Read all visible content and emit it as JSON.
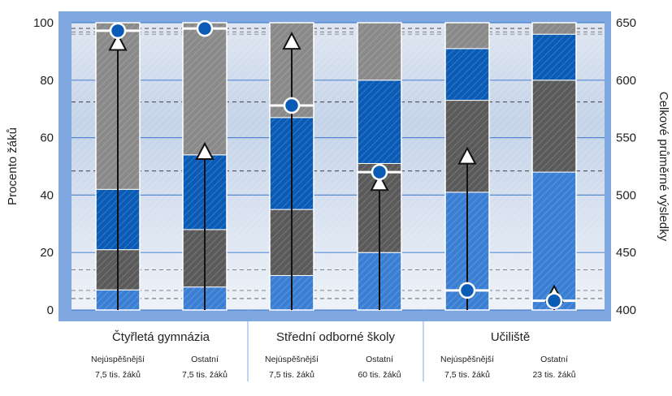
{
  "chart_data": {
    "type": "bar",
    "stacked": true,
    "ylabel": "Procento žáků",
    "y2label": "Celkové průměrné výsledky",
    "ylim": [
      0,
      100
    ],
    "y2lim": [
      400,
      650
    ],
    "yticks": [
      "0",
      "20",
      "40",
      "60",
      "80",
      "100"
    ],
    "y2ticks": [
      "400",
      "450",
      "500",
      "550",
      "600",
      "650"
    ],
    "groups": [
      {
        "label": "Čtyřletá gymnázia"
      },
      {
        "label": "Střední odborné školy"
      },
      {
        "label": "Učiliště"
      }
    ],
    "categories": [
      {
        "name": "Nejúspěšnější",
        "size": "7,5 tis. žáků"
      },
      {
        "name": "Ostatní",
        "size": "7,5 tis. žáků"
      },
      {
        "name": "Nejúspěšnější",
        "size": "7,5 tis. žáků"
      },
      {
        "name": "Ostatní",
        "size": "60 tis. žáků"
      },
      {
        "name": "Nejúspěšnější",
        "size": "7,5 tis. žáků"
      },
      {
        "name": "Ostatní",
        "size": "23 tis. žáků"
      }
    ],
    "segment_colors": [
      "#3b7fd4",
      "#5a5a5a",
      "#0a5bb5",
      "#8a8a8a"
    ],
    "stacks": [
      [
        7,
        14,
        21,
        58
      ],
      [
        8,
        20,
        26,
        46
      ],
      [
        12,
        23,
        32,
        33
      ],
      [
        20,
        31,
        29,
        20
      ],
      [
        41,
        32,
        18,
        9
      ],
      [
        48,
        32,
        16,
        4
      ]
    ],
    "circle_scores": [
      643,
      645,
      578,
      520,
      417,
      408
    ],
    "triangle_scores": [
      632,
      537,
      633,
      510,
      533,
      413
    ],
    "arrow_base_score": 400,
    "circle_bands": [
      [
        645,
        642
      ],
      [
        645,
        640
      ],
      [
        581,
        581
      ],
      [
        521,
        521
      ],
      [
        417,
        410
      ],
      [
        435,
        410
      ]
    ],
    "grid": true
  }
}
